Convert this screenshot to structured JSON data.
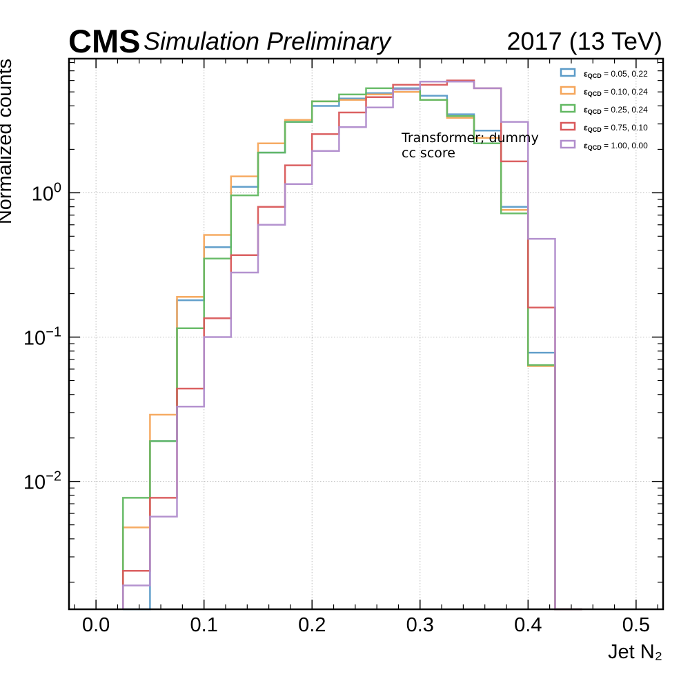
{
  "header": {
    "experiment": "CMS",
    "status": "Simulation Preliminary",
    "lumi": "2017 (13 TeV)"
  },
  "colors": {
    "series": [
      "#5b9bc8",
      "#f5a65b",
      "#62b862",
      "#d9585a",
      "#b08ccc"
    ],
    "grid": "#b8b8b8",
    "axis": "#000000"
  },
  "chart_data": {
    "type": "histogram",
    "xlabel": "Jet N₂",
    "ylabel": "Normalized counts",
    "yscale": "log",
    "xlim": [
      -0.025,
      0.525
    ],
    "ylim": [
      0.0013,
      8.5
    ],
    "xticks": [
      0.0,
      0.1,
      0.2,
      0.3,
      0.4,
      0.5
    ],
    "xtick_labels": [
      "0.0",
      "0.1",
      "0.2",
      "0.3",
      "0.4",
      "0.5"
    ],
    "yticks": [
      0.01,
      0.1,
      1
    ],
    "ytick_labels": [
      {
        "base": "10",
        "exp": "−2"
      },
      {
        "base": "10",
        "exp": "−1"
      },
      {
        "base": "10",
        "exp": "0"
      }
    ],
    "grid": true,
    "legend_position": "top-right",
    "annotation": [
      "Transformer; dummy",
      "cc score"
    ],
    "bin_edges": [
      0.025,
      0.05,
      0.075,
      0.1,
      0.125,
      0.15,
      0.175,
      0.2,
      0.225,
      0.25,
      0.275,
      0.3,
      0.325,
      0.35,
      0.375,
      0.4,
      0.425,
      0.45
    ],
    "series": [
      {
        "name": "εQCD = 0.05, 0.22",
        "label_eps": "ε",
        "label_sub": "QCD",
        "label_rest": " = 0.05, 0.22",
        "values": [
          0.0013,
          0.019,
          0.18,
          0.42,
          1.1,
          1.9,
          3.1,
          4.0,
          4.5,
          4.9,
          5.3,
          4.7,
          3.5,
          2.7,
          0.8,
          0.078,
          0.0013
        ]
      },
      {
        "name": "εQCD = 0.10, 0.24",
        "label_eps": "ε",
        "label_sub": "QCD",
        "label_rest": " = 0.10, 0.24",
        "values": [
          0.0048,
          0.029,
          0.19,
          0.51,
          1.3,
          2.2,
          3.2,
          4.3,
          4.4,
          4.8,
          5.0,
          4.4,
          3.3,
          2.4,
          0.76,
          0.063,
          0.0013
        ]
      },
      {
        "name": "εQCD = 0.25, 0.24",
        "label_eps": "ε",
        "label_sub": "QCD",
        "label_rest": " = 0.25, 0.24",
        "values": [
          0.0077,
          0.019,
          0.115,
          0.35,
          0.96,
          1.9,
          3.1,
          4.3,
          4.8,
          5.3,
          5.2,
          4.4,
          3.4,
          2.2,
          0.72,
          0.064,
          0.0013
        ]
      },
      {
        "name": "εQCD = 0.75, 0.10",
        "label_eps": "ε",
        "label_sub": "QCD",
        "label_rest": " = 0.75, 0.10",
        "values": [
          0.0024,
          0.0077,
          0.044,
          0.135,
          0.37,
          0.8,
          1.55,
          2.55,
          3.6,
          4.6,
          5.6,
          5.6,
          6.0,
          5.3,
          1.65,
          0.16,
          0.0013
        ]
      },
      {
        "name": "εQCD = 1.00, 0.00",
        "label_eps": "ε",
        "label_sub": "QCD",
        "label_rest": " = 1.00, 0.00",
        "values": [
          0.0019,
          0.0057,
          0.033,
          0.1,
          0.28,
          0.6,
          1.15,
          1.95,
          2.85,
          3.9,
          5.2,
          5.9,
          5.9,
          5.3,
          3.1,
          0.48,
          0.0013
        ]
      }
    ]
  }
}
